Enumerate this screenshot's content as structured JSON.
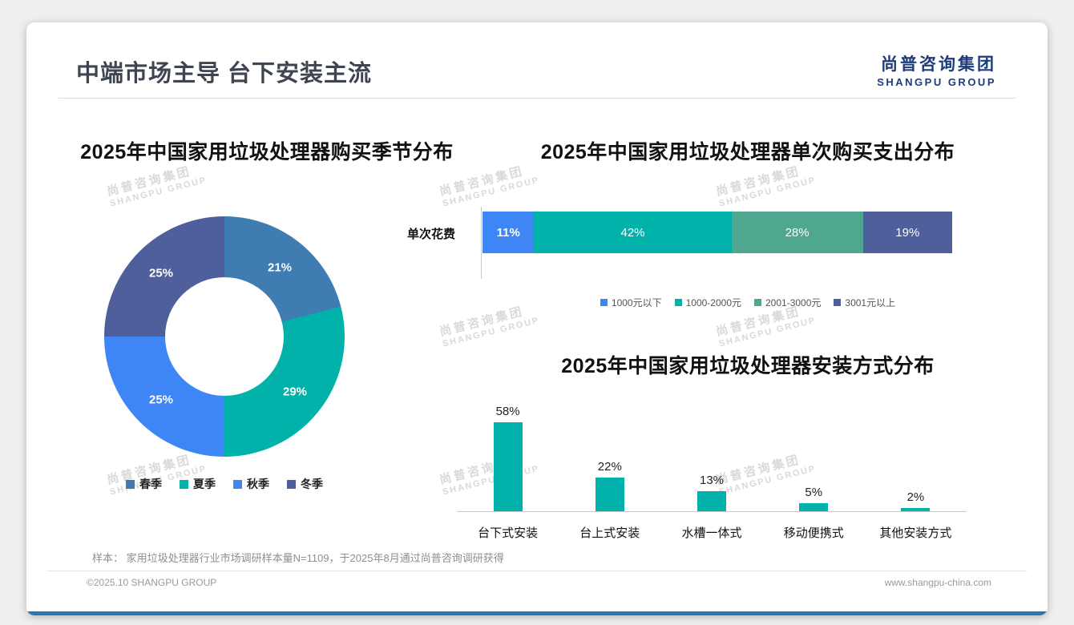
{
  "slide": {
    "title": "中端市场主导 台下安装主流",
    "logo_cn": "尚普咨询集团",
    "logo_en": "SHANGPU GROUP",
    "watermark_cn": "尚普咨询集团",
    "watermark_en": "SHANGPU GROUP",
    "footnote": "样本： 家用垃圾处理器行业市场调研样本量N=1109，于2025年8月通过尚普咨询调研获得",
    "footer_left": "©2025.10 SHANGPU GROUP",
    "footer_right": "www.shangpu-china.com",
    "accent_color": "#2e75b6"
  },
  "chart_data": [
    {
      "type": "pie",
      "subtype": "donut",
      "title": "2025年中国家用垃圾处理器购买季节分布",
      "labels": [
        "春季",
        "夏季",
        "秋季",
        "冬季"
      ],
      "values": [
        21,
        29,
        25,
        25
      ],
      "value_labels": [
        "21%",
        "29%",
        "25%",
        "25%"
      ],
      "colors": [
        "#3e7cb1",
        "#00b2a9",
        "#3e86f5",
        "#4f5f9b"
      ],
      "start_angle_deg": 0,
      "legend_position": "bottom"
    },
    {
      "type": "bar",
      "subtype": "horizontal-stacked",
      "title": "2025年中国家用垃圾处理器单次购买支出分布",
      "category": "单次花费",
      "series": [
        {
          "name": "1000元以下",
          "value": 11,
          "label": "11%",
          "color": "#3e86f5"
        },
        {
          "name": "1000-2000元",
          "value": 42,
          "label": "42%",
          "color": "#00b2a9"
        },
        {
          "name": "2001-3000元",
          "value": 28,
          "label": "28%",
          "color": "#4fa78f"
        },
        {
          "name": "3001元以上",
          "value": 19,
          "label": "19%",
          "color": "#4f5f9b"
        }
      ],
      "xlim": [
        0,
        100
      ],
      "legend_position": "bottom"
    },
    {
      "type": "bar",
      "title": "2025年中国家用垃圾处理器安装方式分布",
      "categories": [
        "台下式安装",
        "台上式安装",
        "水槽一体式",
        "移动便携式",
        "其他安装方式"
      ],
      "values": [
        58,
        22,
        13,
        5,
        2
      ],
      "value_labels": [
        "58%",
        "22%",
        "13%",
        "5%",
        "2%"
      ],
      "color": "#00b2a9",
      "ylim": [
        0,
        60
      ],
      "grid": false
    }
  ]
}
